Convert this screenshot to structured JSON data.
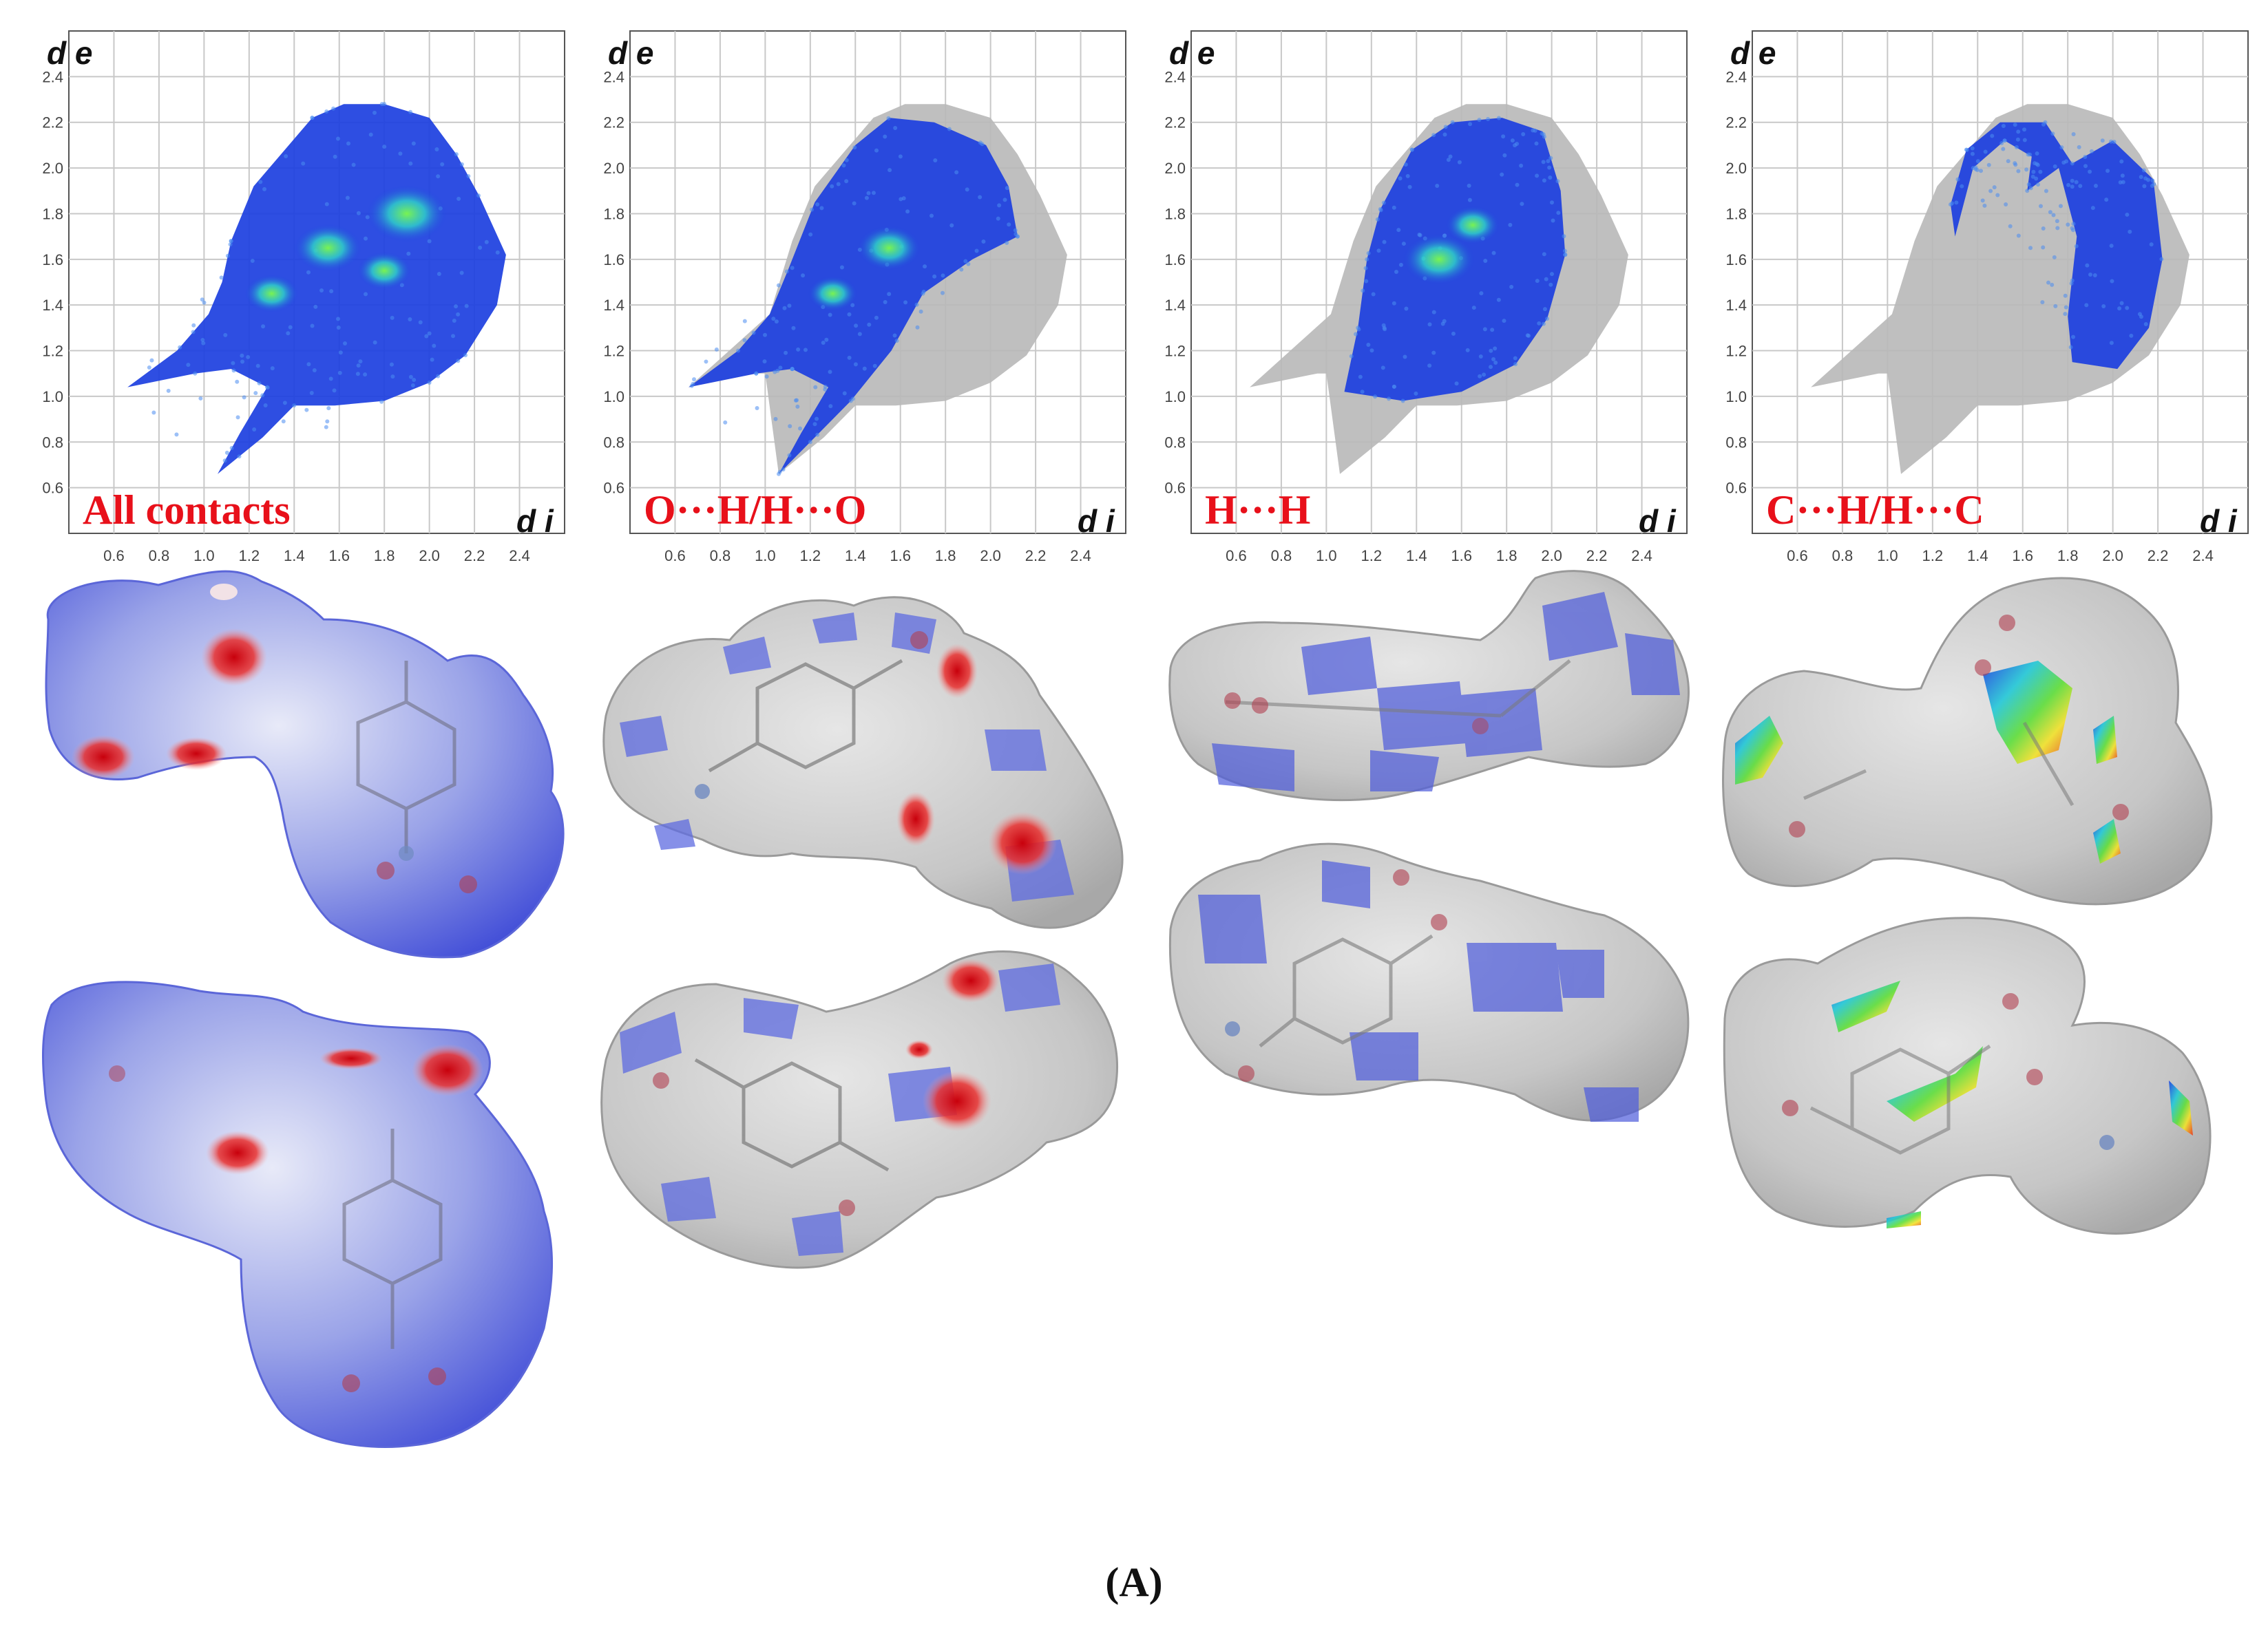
{
  "chart_data": [
    {
      "type": "scatter",
      "label": "All contacts",
      "xlabel": "d i",
      "ylabel": "d e",
      "xlim": [
        0.4,
        2.6
      ],
      "ylim": [
        0.4,
        2.6
      ],
      "xticks": [
        "0.6",
        "0.8",
        "1.0",
        "1.2",
        "1.4",
        "1.6",
        "1.8",
        "2.0",
        "2.2",
        "2.4"
      ],
      "yticks": [
        "0.6",
        "0.8",
        "1.0",
        "1.2",
        "1.4",
        "1.6",
        "1.8",
        "2.0",
        "2.2",
        "2.4"
      ],
      "grid": true,
      "highlight_color": "#1c3fe0",
      "background_color": "#b8b8b8",
      "highlight_polygon": [
        [
          0.66,
          1.04
        ],
        [
          0.88,
          1.2
        ],
        [
          1.02,
          1.36
        ],
        [
          1.08,
          1.5
        ],
        [
          1.12,
          1.68
        ],
        [
          1.22,
          1.92
        ],
        [
          1.48,
          2.22
        ],
        [
          1.62,
          2.28
        ],
        [
          1.8,
          2.28
        ],
        [
          2.0,
          2.22
        ],
        [
          2.12,
          2.06
        ],
        [
          2.22,
          1.88
        ],
        [
          2.34,
          1.62
        ],
        [
          2.3,
          1.4
        ],
        [
          2.16,
          1.18
        ],
        [
          2.0,
          1.06
        ],
        [
          1.8,
          0.98
        ],
        [
          1.58,
          0.96
        ],
        [
          1.4,
          0.96
        ],
        [
          1.26,
          0.82
        ],
        [
          1.06,
          0.66
        ],
        [
          1.16,
          0.84
        ],
        [
          1.28,
          1.04
        ],
        [
          1.12,
          1.12
        ],
        [
          0.96,
          1.1
        ]
      ],
      "background_polygon": [],
      "hotspots": [
        [
          1.9,
          1.8,
          0.18
        ],
        [
          1.55,
          1.65,
          0.15
        ],
        [
          1.3,
          1.45,
          0.12
        ],
        [
          1.8,
          1.55,
          0.12
        ]
      ]
    },
    {
      "type": "scatter",
      "label": "O···H/H···O",
      "xlabel": "d i",
      "ylabel": "d e",
      "xlim": [
        0.4,
        2.6
      ],
      "ylim": [
        0.4,
        2.6
      ],
      "xticks": [
        "0.6",
        "0.8",
        "1.0",
        "1.2",
        "1.4",
        "1.6",
        "1.8",
        "2.0",
        "2.2",
        "2.4"
      ],
      "yticks": [
        "0.6",
        "0.8",
        "1.0",
        "1.2",
        "1.4",
        "1.6",
        "1.8",
        "2.0",
        "2.2",
        "2.4"
      ],
      "grid": true,
      "highlight_color": "#1c3fe0",
      "background_color": "#b8b8b8",
      "highlight_polygon": [
        [
          0.66,
          1.04
        ],
        [
          0.88,
          1.2
        ],
        [
          1.02,
          1.36
        ],
        [
          1.1,
          1.55
        ],
        [
          1.22,
          1.85
        ],
        [
          1.4,
          2.1
        ],
        [
          1.55,
          2.22
        ],
        [
          1.75,
          2.2
        ],
        [
          1.98,
          2.1
        ],
        [
          2.08,
          1.92
        ],
        [
          2.12,
          1.7
        ],
        [
          1.92,
          1.6
        ],
        [
          1.7,
          1.45
        ],
        [
          1.56,
          1.2
        ],
        [
          1.38,
          0.98
        ],
        [
          1.06,
          0.66
        ],
        [
          1.16,
          0.84
        ],
        [
          1.28,
          1.04
        ],
        [
          1.12,
          1.12
        ],
        [
          0.96,
          1.1
        ]
      ],
      "background_polygon": [
        [
          0.66,
          1.04
        ],
        [
          1.02,
          1.36
        ],
        [
          1.12,
          1.68
        ],
        [
          1.22,
          1.92
        ],
        [
          1.48,
          2.22
        ],
        [
          1.62,
          2.28
        ],
        [
          1.8,
          2.28
        ],
        [
          2.0,
          2.22
        ],
        [
          2.12,
          2.06
        ],
        [
          2.22,
          1.88
        ],
        [
          2.34,
          1.62
        ],
        [
          2.3,
          1.4
        ],
        [
          2.16,
          1.18
        ],
        [
          2.0,
          1.06
        ],
        [
          1.8,
          0.98
        ],
        [
          1.58,
          0.96
        ],
        [
          1.4,
          0.96
        ],
        [
          1.26,
          0.82
        ],
        [
          1.06,
          0.66
        ],
        [
          1.0,
          1.1
        ],
        [
          0.96,
          1.1
        ]
      ],
      "hotspots": [
        [
          1.55,
          1.65,
          0.14
        ],
        [
          1.3,
          1.45,
          0.11
        ]
      ]
    },
    {
      "type": "scatter",
      "label": "H···H",
      "xlabel": "d i",
      "ylabel": "d e",
      "xlim": [
        0.4,
        2.6
      ],
      "ylim": [
        0.4,
        2.6
      ],
      "xticks": [
        "0.6",
        "0.8",
        "1.0",
        "1.2",
        "1.4",
        "1.6",
        "1.8",
        "2.0",
        "2.2",
        "2.4"
      ],
      "yticks": [
        "0.6",
        "0.8",
        "1.0",
        "1.2",
        "1.4",
        "1.6",
        "1.8",
        "2.0",
        "2.2",
        "2.4"
      ],
      "grid": true,
      "highlight_color": "#1c3fe0",
      "background_color": "#b8b8b8",
      "highlight_polygon": [
        [
          1.08,
          1.02
        ],
        [
          1.14,
          1.3
        ],
        [
          1.18,
          1.6
        ],
        [
          1.24,
          1.82
        ],
        [
          1.38,
          2.08
        ],
        [
          1.56,
          2.2
        ],
        [
          1.78,
          2.22
        ],
        [
          1.96,
          2.16
        ],
        [
          2.04,
          1.9
        ],
        [
          2.06,
          1.62
        ],
        [
          1.98,
          1.34
        ],
        [
          1.84,
          1.14
        ],
        [
          1.6,
          1.02
        ],
        [
          1.34,
          0.98
        ]
      ],
      "background_polygon": [
        [
          0.66,
          1.04
        ],
        [
          1.02,
          1.36
        ],
        [
          1.12,
          1.68
        ],
        [
          1.22,
          1.92
        ],
        [
          1.48,
          2.22
        ],
        [
          1.62,
          2.28
        ],
        [
          1.8,
          2.28
        ],
        [
          2.0,
          2.22
        ],
        [
          2.12,
          2.06
        ],
        [
          2.22,
          1.88
        ],
        [
          2.34,
          1.62
        ],
        [
          2.3,
          1.4
        ],
        [
          2.16,
          1.18
        ],
        [
          2.0,
          1.06
        ],
        [
          1.8,
          0.98
        ],
        [
          1.58,
          0.96
        ],
        [
          1.4,
          0.96
        ],
        [
          1.26,
          0.82
        ],
        [
          1.06,
          0.66
        ],
        [
          1.0,
          1.1
        ],
        [
          0.96,
          1.1
        ]
      ],
      "hotspots": [
        [
          1.5,
          1.6,
          0.16
        ],
        [
          1.65,
          1.75,
          0.12
        ]
      ]
    },
    {
      "type": "scatter",
      "label": "C···H/H···C",
      "xlabel": "d i",
      "ylabel": "d e",
      "xlim": [
        0.4,
        2.6
      ],
      "ylim": [
        0.4,
        2.6
      ],
      "xticks": [
        "0.6",
        "0.8",
        "1.0",
        "1.2",
        "1.4",
        "1.6",
        "1.8",
        "2.0",
        "2.2",
        "2.4"
      ],
      "yticks": [
        "0.6",
        "0.8",
        "1.0",
        "1.2",
        "1.4",
        "1.6",
        "1.8",
        "2.0",
        "2.2",
        "2.4"
      ],
      "grid": true,
      "highlight_color": "#1c3fe0",
      "background_color": "#b8b8b8",
      "highlight_polygon": [
        [
          1.3,
          1.7
        ],
        [
          1.38,
          2.0
        ],
        [
          1.52,
          2.12
        ],
        [
          1.64,
          2.05
        ],
        [
          1.62,
          1.9
        ],
        [
          1.76,
          2.0
        ],
        [
          1.84,
          1.7
        ],
        [
          1.8,
          1.35
        ],
        [
          1.82,
          1.15
        ],
        [
          2.02,
          1.12
        ],
        [
          2.16,
          1.3
        ],
        [
          2.22,
          1.6
        ],
        [
          2.18,
          1.95
        ],
        [
          2.0,
          2.12
        ],
        [
          1.82,
          2.02
        ],
        [
          1.7,
          2.2
        ],
        [
          1.5,
          2.2
        ],
        [
          1.35,
          2.08
        ],
        [
          1.28,
          1.84
        ]
      ],
      "background_polygon": [
        [
          0.66,
          1.04
        ],
        [
          1.02,
          1.36
        ],
        [
          1.12,
          1.68
        ],
        [
          1.22,
          1.92
        ],
        [
          1.48,
          2.22
        ],
        [
          1.62,
          2.28
        ],
        [
          1.8,
          2.28
        ],
        [
          2.0,
          2.22
        ],
        [
          2.12,
          2.06
        ],
        [
          2.22,
          1.88
        ],
        [
          2.34,
          1.62
        ],
        [
          2.3,
          1.4
        ],
        [
          2.16,
          1.18
        ],
        [
          2.0,
          1.06
        ],
        [
          1.8,
          0.98
        ],
        [
          1.58,
          0.96
        ],
        [
          1.4,
          0.96
        ],
        [
          1.26,
          0.82
        ],
        [
          1.06,
          0.66
        ],
        [
          1.0,
          1.1
        ],
        [
          0.96,
          1.1
        ]
      ],
      "hotspots": []
    }
  ],
  "surfaces": [
    {
      "name": "all-contacts",
      "views": [
        {
          "style": "dnorm",
          "red_spots": 4
        },
        {
          "style": "dnorm",
          "red_spots": 3
        }
      ]
    },
    {
      "name": "o-h-contacts",
      "views": [
        {
          "style": "partial",
          "red_spots": 3
        },
        {
          "style": "partial",
          "red_spots": 2
        }
      ]
    },
    {
      "name": "h-h-contacts",
      "views": [
        {
          "style": "partial",
          "red_spots": 0
        },
        {
          "style": "partial",
          "red_spots": 0
        }
      ]
    },
    {
      "name": "c-h-contacts",
      "views": [
        {
          "style": "shape-index",
          "red_spots": 0
        },
        {
          "style": "shape-index",
          "red_spots": 0
        }
      ]
    }
  ],
  "colors": {
    "red_text": "#e8101a",
    "blue_surface": "#5e6be0",
    "gray_surface": "#c9c9c9",
    "red_spot": "#d81820"
  },
  "caption": "(A)"
}
